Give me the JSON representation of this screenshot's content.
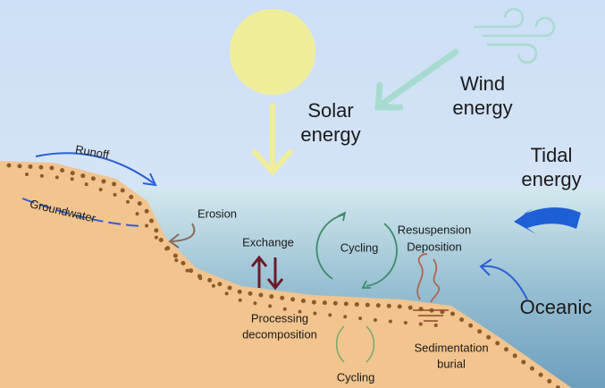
{
  "labels": [
    {
      "lines": [
        "Solar",
        "energy"
      ]
    },
    {
      "lines": [
        "Wind",
        "energy"
      ]
    },
    {
      "lines": [
        "Tidal",
        "energy"
      ]
    },
    {
      "lines": [
        "Runoff"
      ]
    },
    {
      "lines": [
        "Groundwater"
      ]
    },
    {
      "lines": [
        "Erosion"
      ]
    },
    {
      "lines": [
        "Exchange"
      ]
    },
    {
      "lines": [
        "Cycling"
      ]
    },
    {
      "lines": [
        "Resuspension",
        "Deposition"
      ]
    },
    {
      "lines": [
        "Processing",
        "decomposition"
      ]
    },
    {
      "lines": [
        "Oceanic"
      ]
    },
    {
      "lines": [
        "Sedimentation",
        "burial"
      ]
    },
    {
      "lines": [
        "Cycling"
      ]
    }
  ]
}
